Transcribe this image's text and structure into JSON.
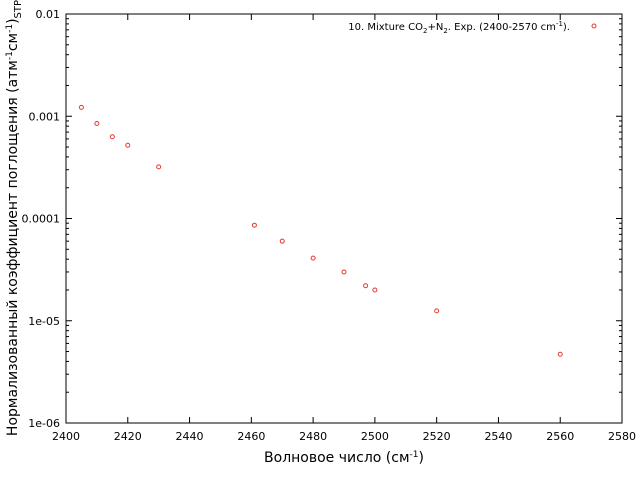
{
  "chart_data": {
    "type": "scatter",
    "title": "",
    "xlabel": "Волновое число (см",
    "xlabel_sup": "-1",
    "xlabel_end": ")",
    "ylabel_main": "Нормализованный коэффициент поглощения (атм",
    "ylabel_sup1": "-1",
    "ylabel_mid": "см",
    "ylabel_sup2": "-1",
    "ylabel_end": ")",
    "ylabel_sub": "STP",
    "xlim": [
      2400,
      2580
    ],
    "ylim": [
      1e-06,
      0.01
    ],
    "yscale": "log",
    "grid": false,
    "legend_position": "top-right",
    "x_ticks": [
      2400,
      2420,
      2440,
      2460,
      2480,
      2500,
      2520,
      2540,
      2560,
      2580
    ],
    "x_tick_labels": [
      "2400",
      "2420",
      "2440",
      "2460",
      "2480",
      "2500",
      "2520",
      "2540",
      "2560",
      "2580"
    ],
    "y_ticks": [
      1e-06,
      1e-05,
      0.0001,
      0.001,
      0.01
    ],
    "y_tick_labels": [
      "1e-06",
      "1e-05",
      "0.0001",
      "0.001",
      "0.01"
    ],
    "series": [
      {
        "name": "10. Mixture CO2+N2. Exp. (2400-2570 cm-1).",
        "legend_parts": {
          "p1": "10. Mixture CO",
          "s1": "2",
          "p2": "+N",
          "s2": "2",
          "p3": ". Exp. (2400-2570 cm",
          "s3": "-1",
          "p4": ")."
        },
        "marker": "open-circle",
        "color": "#e8382f",
        "x": [
          2405,
          2410,
          2415,
          2420,
          2430,
          2461,
          2470,
          2480,
          2490,
          2497,
          2500,
          2520,
          2560
        ],
        "y": [
          0.00122,
          0.00085,
          0.00063,
          0.00052,
          0.00032,
          8.6e-05,
          6e-05,
          4.1e-05,
          3e-05,
          2.2e-05,
          2e-05,
          1.25e-05,
          4.7e-06
        ]
      }
    ]
  }
}
